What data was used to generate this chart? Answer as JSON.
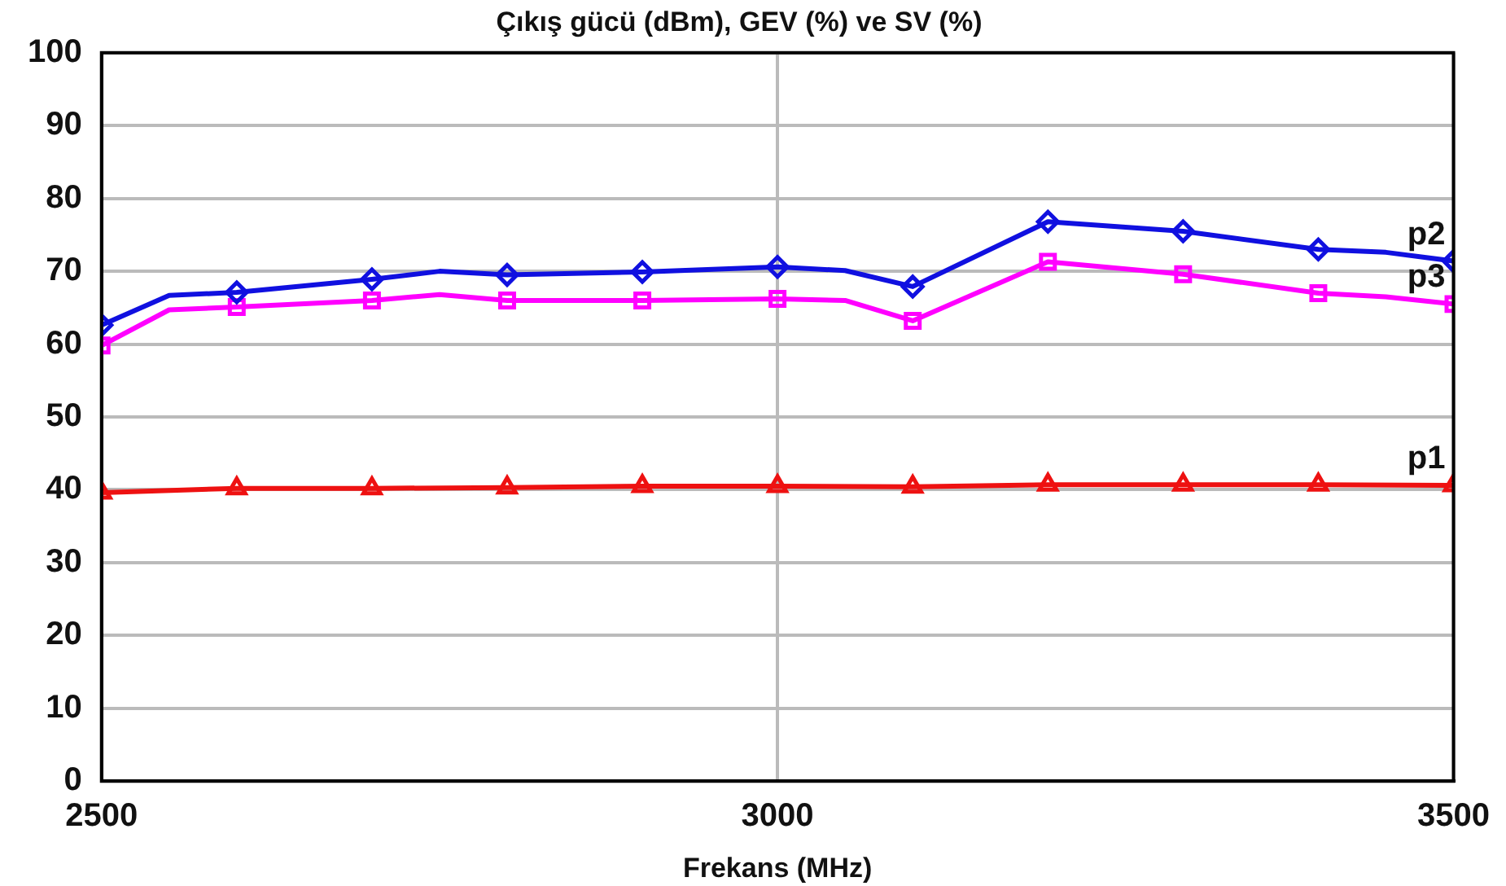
{
  "chart_data": {
    "type": "line",
    "title": "Çıkış gücü (dBm), GEV (%) ve SV (%)",
    "xlabel": "Frekans (MHz)",
    "xlim": [
      2500,
      3500
    ],
    "xticks": [
      2500,
      3000,
      3500
    ],
    "ylim": [
      0,
      100
    ],
    "yticks": [
      0,
      10,
      20,
      30,
      40,
      50,
      60,
      70,
      80,
      90,
      100
    ],
    "grid": true,
    "legend": false,
    "series": [
      {
        "name": "p2",
        "color": "#1010e0",
        "marker": "diamond",
        "x": [
          2500,
          2550,
          2600,
          2700,
          2750,
          2800,
          2900,
          3000,
          3050,
          3100,
          3200,
          3300,
          3400,
          3450,
          3500
        ],
        "values": [
          62.6,
          66.7,
          67.1,
          68.9,
          70.0,
          69.5,
          69.9,
          70.6,
          70.1,
          67.9,
          76.8,
          75.5,
          73.0,
          72.6,
          71.4
        ]
      },
      {
        "name": "p3",
        "color": "#ff00ff",
        "marker": "square",
        "x": [
          2500,
          2550,
          2600,
          2700,
          2750,
          2800,
          2900,
          3000,
          3050,
          3100,
          3200,
          3300,
          3400,
          3450,
          3500
        ],
        "values": [
          59.8,
          64.7,
          65.1,
          66.0,
          66.8,
          66.0,
          66.0,
          66.2,
          66.0,
          63.2,
          71.3,
          69.6,
          67.0,
          66.5,
          65.5
        ]
      },
      {
        "name": "p1",
        "color": "#ee1111",
        "marker": "triangle",
        "x": [
          2500,
          2600,
          2700,
          2800,
          2900,
          3000,
          3100,
          3200,
          3300,
          3400,
          3500
        ],
        "values": [
          39.6,
          40.2,
          40.2,
          40.3,
          40.5,
          40.5,
          40.4,
          40.7,
          40.7,
          40.7,
          40.6
        ]
      }
    ]
  }
}
